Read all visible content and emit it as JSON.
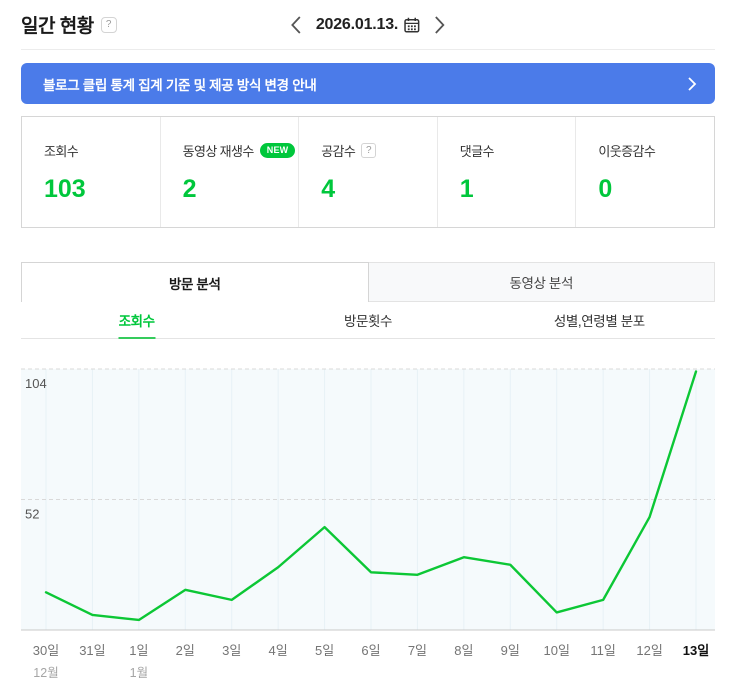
{
  "header": {
    "title": "일간 현황",
    "help": "?",
    "date": "2026.01.13."
  },
  "notice": {
    "text": "블로그 클립 통계 집계 기준 및 제공 방식 변경 안내"
  },
  "stats": {
    "items": [
      {
        "label": "조회수",
        "value": "103"
      },
      {
        "label": "동영상 재생수",
        "value": "2",
        "badge": "NEW"
      },
      {
        "label": "공감수",
        "value": "4",
        "help": "?"
      },
      {
        "label": "댓글수",
        "value": "1"
      },
      {
        "label": "이웃증감수",
        "value": "0"
      }
    ]
  },
  "tabs": {
    "items": [
      {
        "label": "방문 분석",
        "active": true
      },
      {
        "label": "동영상 분석",
        "active": false
      }
    ]
  },
  "subtabs": {
    "items": [
      {
        "label": "조회수",
        "active": true
      },
      {
        "label": "방문횟수",
        "active": false
      },
      {
        "label": "성별,연령별 분포",
        "active": false
      }
    ]
  },
  "colors": {
    "accent_green": "#00c73c",
    "banner_blue": "#4b7be9"
  },
  "chart_data": {
    "type": "line",
    "title": "",
    "series_name": "조회수",
    "categories": [
      "30일",
      "31일",
      "1일",
      "2일",
      "3일",
      "4일",
      "5일",
      "6일",
      "7일",
      "8일",
      "9일",
      "10일",
      "11일",
      "12일",
      "13일"
    ],
    "values": [
      15,
      6,
      4,
      16,
      12,
      25,
      41,
      23,
      22,
      29,
      26,
      7,
      12,
      45,
      103
    ],
    "month_markers": [
      {
        "index": 0,
        "label": "12월"
      },
      {
        "index": 2,
        "label": "1월"
      }
    ],
    "xlabel": "",
    "ylabel": "",
    "yticks": [
      52,
      104
    ],
    "ylim": [
      0,
      104
    ],
    "grid": true,
    "legend": false,
    "colors": {
      "line": "#0cc735",
      "plot_bg": "#f5fafc",
      "v_grid": "#e7f1f6",
      "h_grid": "#d9d9d9",
      "axis": "#c9c9c9",
      "tick_text": "#555555",
      "tick_text_x": "#757575",
      "tick_strong": "#111111",
      "month_text": "#a5a5a5"
    }
  }
}
